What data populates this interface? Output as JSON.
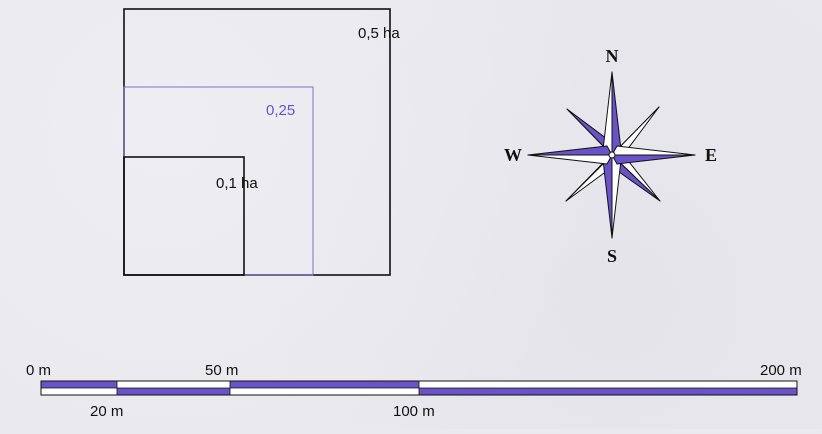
{
  "colors": {
    "ink": "#111111",
    "accent": "#6a52c8",
    "accent_line": "#7b70d8",
    "paper": "#ffffff"
  },
  "area_squares": {
    "large_label": "0,5 ha",
    "medium_label": "0,25",
    "small_label": "0,1 ha"
  },
  "compass": {
    "north": "N",
    "south": "S",
    "east": "E",
    "west": "W"
  },
  "scale_bar": {
    "labels_top": [
      "0 m",
      "50 m",
      "200 m"
    ],
    "labels_bottom": [
      "20 m",
      "100 m"
    ]
  }
}
